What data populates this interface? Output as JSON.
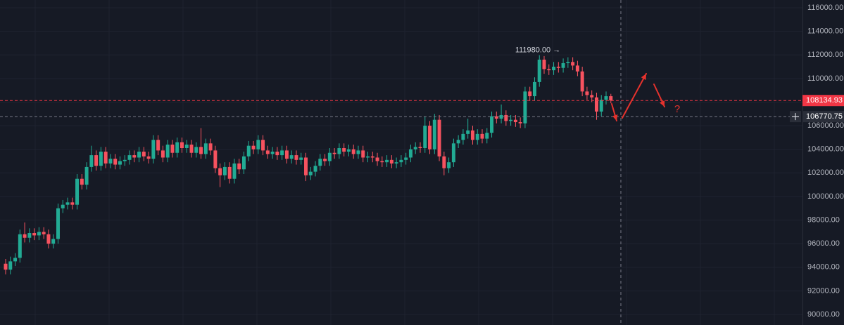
{
  "chart_data": {
    "type": "candlestick",
    "up_color": "#22ab94",
    "down_color": "#f7525f",
    "open": [
      94300,
      93800,
      94500,
      94800,
      96800,
      96500,
      96900,
      96700,
      97000,
      96800,
      96000,
      96400,
      99000,
      99300,
      99500,
      99300,
      101500,
      101000,
      102500,
      103500,
      102600,
      103800,
      102800,
      103200,
      102700,
      103000,
      103100,
      103500,
      103300,
      103800,
      103400,
      103200,
      104800,
      103900,
      103300,
      104400,
      103700,
      104600,
      104100,
      104400,
      103700,
      104200,
      103600,
      104500,
      103900,
      102400,
      101800,
      102500,
      101500,
      102800,
      102300,
      103400,
      104300,
      104000,
      104800,
      103900,
      103600,
      103800,
      103500,
      103900,
      103200,
      103500,
      103100,
      103300,
      101800,
      102100,
      102600,
      103200,
      103000,
      103700,
      103600,
      104100,
      103800,
      104000,
      103600,
      103900,
      103300,
      103400,
      103300,
      103000,
      102900,
      103100,
      102800,
      102900,
      103100,
      103300,
      104000,
      104200,
      104100,
      106000,
      104000,
      106500,
      103400,
      102400,
      102900,
      104500,
      104800,
      105300,
      105600,
      104800,
      105300,
      104900,
      105400,
      106800,
      106600,
      106900,
      106400,
      106500,
      106300,
      106200,
      108900,
      108500,
      109700,
      111600,
      110800,
      110700,
      111000,
      110900,
      111300,
      111400,
      111100,
      110600,
      108900,
      108600,
      108400,
      107200,
      108200,
      108500
    ],
    "high": [
      94700,
      94900,
      95200,
      97200,
      97800,
      97300,
      97300,
      97400,
      97400,
      97200,
      96800,
      99400,
      99700,
      99900,
      99900,
      101900,
      101900,
      102900,
      104300,
      103900,
      104200,
      104200,
      103600,
      103600,
      103400,
      103500,
      103900,
      103900,
      104200,
      104200,
      103800,
      105200,
      105200,
      104300,
      104800,
      104800,
      105000,
      105000,
      104800,
      104800,
      104600,
      105800,
      104900,
      104900,
      104300,
      102800,
      102900,
      102900,
      103200,
      103200,
      103800,
      104700,
      104700,
      105200,
      105200,
      104300,
      104200,
      104200,
      104300,
      104300,
      103900,
      103900,
      103700,
      103700,
      102500,
      103000,
      103600,
      103600,
      104100,
      104100,
      104500,
      104500,
      104400,
      104400,
      104300,
      104300,
      103800,
      103800,
      103700,
      103400,
      103500,
      103500,
      103300,
      103500,
      103700,
      104400,
      104600,
      104600,
      106800,
      106400,
      107000,
      106900,
      103800,
      103300,
      104900,
      105200,
      105700,
      106600,
      106000,
      105700,
      105700,
      105800,
      107200,
      107200,
      107800,
      107300,
      106900,
      106900,
      106700,
      109300,
      109300,
      110100,
      111980,
      111900,
      111200,
      111400,
      111400,
      111700,
      111800,
      111800,
      111500,
      111000,
      109300,
      109000,
      108800,
      108600,
      108900,
      108700
    ],
    "low": [
      93400,
      93400,
      94100,
      94400,
      96100,
      96100,
      96300,
      96300,
      96400,
      95600,
      95600,
      96000,
      98600,
      98900,
      98900,
      98900,
      100600,
      100600,
      102100,
      102200,
      102200,
      102400,
      102400,
      102300,
      102300,
      102600,
      102700,
      102900,
      102900,
      103000,
      102800,
      102800,
      103500,
      102900,
      102900,
      103300,
      103300,
      103700,
      103700,
      103300,
      103300,
      103200,
      103200,
      103500,
      102000,
      100800,
      101400,
      101100,
      101100,
      101900,
      101900,
      103000,
      103600,
      103600,
      103500,
      103200,
      103200,
      103100,
      103100,
      102800,
      102800,
      102700,
      102700,
      101300,
      101400,
      101700,
      102200,
      102600,
      102600,
      103200,
      103200,
      103400,
      103400,
      103200,
      103200,
      102900,
      102900,
      102900,
      102600,
      102500,
      102500,
      102400,
      102400,
      102500,
      102700,
      102900,
      103600,
      103700,
      103700,
      103600,
      103600,
      103000,
      101800,
      102000,
      102500,
      104100,
      104400,
      104900,
      104400,
      104400,
      104500,
      104500,
      105000,
      106200,
      106200,
      106000,
      106000,
      105900,
      105800,
      105800,
      108100,
      108100,
      109300,
      110400,
      110300,
      110300,
      110500,
      110500,
      110900,
      110700,
      110200,
      108500,
      108200,
      108000,
      106500,
      106800,
      107800,
      107900
    ],
    "close": [
      93800,
      94500,
      94800,
      96800,
      96500,
      96900,
      96700,
      97000,
      96800,
      96000,
      96400,
      99000,
      99300,
      99500,
      99300,
      101500,
      101000,
      102500,
      103500,
      102600,
      103800,
      102800,
      103200,
      102700,
      103000,
      103100,
      103500,
      103300,
      103800,
      103400,
      103200,
      104800,
      103900,
      103300,
      104400,
      103700,
      104600,
      104100,
      104400,
      103700,
      104200,
      103600,
      104500,
      103900,
      102400,
      101800,
      102500,
      101500,
      102800,
      102300,
      103400,
      104300,
      104000,
      104800,
      103900,
      103600,
      103800,
      103500,
      103900,
      103200,
      103500,
      103100,
      103300,
      101800,
      102100,
      102600,
      103200,
      103000,
      103700,
      103600,
      104100,
      103800,
      104000,
      103600,
      103900,
      103300,
      103400,
      103300,
      103000,
      102900,
      103100,
      102800,
      102900,
      103100,
      103300,
      104000,
      104200,
      104100,
      106000,
      104000,
      106500,
      103400,
      102400,
      102900,
      104500,
      104800,
      105300,
      105600,
      104800,
      105300,
      104900,
      105400,
      106800,
      106600,
      106900,
      106400,
      106500,
      106300,
      106200,
      108900,
      108500,
      109700,
      111600,
      110800,
      110700,
      111000,
      110900,
      111300,
      111400,
      111100,
      110600,
      108900,
      108600,
      108400,
      107200,
      108200,
      108500,
      108134.93
    ],
    "ylim": [
      89107,
      116655
    ],
    "yticks": [
      {
        "value": 90000,
        "label": "90000.00"
      },
      {
        "value": 92000,
        "label": "92000.00"
      },
      {
        "value": 94000,
        "label": "94000.00"
      },
      {
        "value": 96000,
        "label": "96000.00"
      },
      {
        "value": 98000,
        "label": "98000.00"
      },
      {
        "value": 100000,
        "label": "100000.00"
      },
      {
        "value": 102000,
        "label": "102000.00"
      },
      {
        "value": 104000,
        "label": "104000.00"
      },
      {
        "value": 106000,
        "label": "106000.00"
      },
      {
        "value": 108000,
        "label": "108000.00"
      },
      {
        "value": 110000,
        "label": "110000.00"
      },
      {
        "value": 112000,
        "label": "112000.00"
      },
      {
        "value": 114000,
        "label": "114000.00"
      },
      {
        "value": 116000,
        "label": "116000.00"
      }
    ],
    "grid": true,
    "high_marker": {
      "value": 111980,
      "label": "111980.00 →",
      "index": 112
    },
    "price_lines": [
      {
        "value": 108134.93,
        "label": "108134.93",
        "color": "#f23645",
        "box": "#f23645"
      },
      {
        "value": 106770.75,
        "label": "106770.75",
        "color": "#787b86",
        "box": "#2a2e39"
      }
    ],
    "annotation": "?"
  }
}
